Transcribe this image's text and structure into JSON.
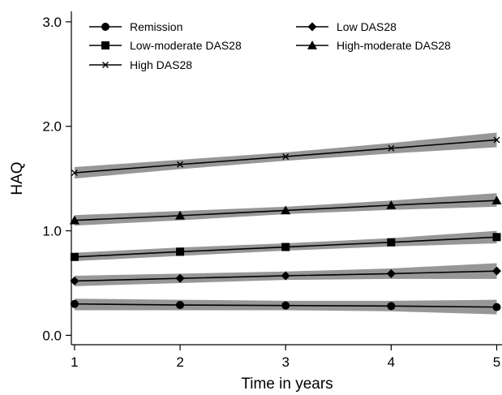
{
  "chart_data": {
    "type": "line",
    "title": "",
    "xlabel": "Time in years",
    "ylabel": "HAQ",
    "x": [
      1,
      2,
      3,
      4,
      5
    ],
    "xticks": [
      "1",
      "2",
      "3",
      "4",
      "5"
    ],
    "yticks": [
      "0.0",
      "1.0",
      "2.0",
      "3.0"
    ],
    "ytick_values": [
      0,
      1,
      2,
      3
    ],
    "xlim": [
      0.97,
      5.05
    ],
    "ylim": [
      -0.09,
      3.1
    ],
    "grid": false,
    "legend_placement": "top-left",
    "band_color": "#8c8c8c",
    "line_color": "#000000",
    "series": [
      {
        "name": "Remission",
        "marker": "circle",
        "values": [
          0.3,
          0.29,
          0.285,
          0.28,
          0.27
        ],
        "lower": [
          0.24,
          0.24,
          0.24,
          0.23,
          0.2
        ],
        "upper": [
          0.35,
          0.34,
          0.33,
          0.33,
          0.34
        ]
      },
      {
        "name": "Low DAS28",
        "marker": "diamond",
        "values": [
          0.52,
          0.545,
          0.57,
          0.59,
          0.615
        ],
        "lower": [
          0.47,
          0.5,
          0.53,
          0.54,
          0.54
        ],
        "upper": [
          0.57,
          0.59,
          0.61,
          0.64,
          0.69
        ]
      },
      {
        "name": "Low-moderate DAS28",
        "marker": "square",
        "values": [
          0.75,
          0.8,
          0.845,
          0.89,
          0.94
        ],
        "lower": [
          0.71,
          0.76,
          0.81,
          0.85,
          0.88
        ],
        "upper": [
          0.79,
          0.84,
          0.88,
          0.93,
          1.0
        ]
      },
      {
        "name": "High-moderate DAS28",
        "marker": "triangle",
        "values": [
          1.1,
          1.145,
          1.195,
          1.245,
          1.29
        ],
        "lower": [
          1.05,
          1.1,
          1.16,
          1.2,
          1.23
        ],
        "upper": [
          1.15,
          1.19,
          1.23,
          1.29,
          1.36
        ]
      },
      {
        "name": "High DAS28",
        "marker": "x",
        "values": [
          1.555,
          1.635,
          1.71,
          1.79,
          1.87
        ],
        "lower": [
          1.5,
          1.59,
          1.67,
          1.74,
          1.8
        ],
        "upper": [
          1.61,
          1.68,
          1.75,
          1.84,
          1.94
        ]
      }
    ],
    "legend": [
      {
        "name": "Remission",
        "marker": "circle"
      },
      {
        "name": "Low DAS28",
        "marker": "diamond"
      },
      {
        "name": "Low-moderate DAS28",
        "marker": "square"
      },
      {
        "name": "High-moderate DAS28",
        "marker": "triangle"
      },
      {
        "name": "High DAS28",
        "marker": "x"
      }
    ]
  }
}
